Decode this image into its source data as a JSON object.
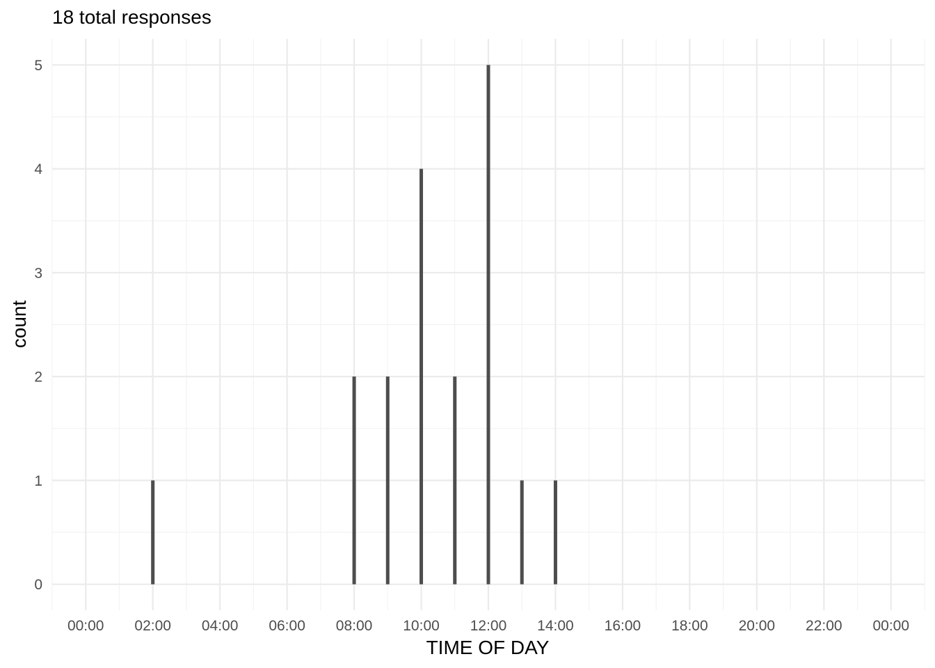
{
  "chart_data": {
    "type": "bar",
    "title": "18 total responses",
    "xlabel": "TIME OF DAY",
    "ylabel": "count",
    "x_tick_labels": [
      "00:00",
      "02:00",
      "04:00",
      "06:00",
      "08:00",
      "10:00",
      "12:00",
      "14:00",
      "16:00",
      "18:00",
      "20:00",
      "22:00",
      "00:00"
    ],
    "y_tick_labels": [
      "0",
      "1",
      "2",
      "3",
      "4",
      "5"
    ],
    "xlim_hours": [
      -1,
      25
    ],
    "ylim": [
      -0.25,
      5.25
    ],
    "bars": [
      {
        "x": "02:00",
        "value": 1
      },
      {
        "x": "08:00",
        "value": 2
      },
      {
        "x": "09:00",
        "value": 2
      },
      {
        "x": "10:00",
        "value": 4
      },
      {
        "x": "11:00",
        "value": 2
      },
      {
        "x": "12:00",
        "value": 5
      },
      {
        "x": "13:00",
        "value": 1
      },
      {
        "x": "14:00",
        "value": 1
      }
    ],
    "bar_color": "#4d4d4d",
    "grid": true,
    "grid_major_color": "#ebebeb",
    "grid_minor_color": "#f2f2f2",
    "background_color": "#ffffff"
  }
}
